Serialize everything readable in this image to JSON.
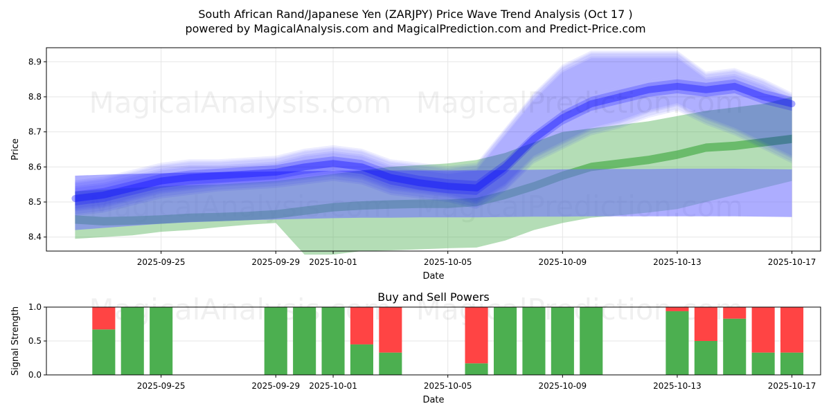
{
  "title_line1": "South African Rand/Japanese Yen (ZARJPY) Price Wave Trend Analysis (Oct 17 )",
  "title_line2": "powered by MagicalAnalysis.com and MagicalPrediction.com and Predict-Price.com",
  "watermarks": [
    "MagicalAnalysis.com",
    "MagicalPrediction.com"
  ],
  "colors": {
    "buy": "#4caf50",
    "sell": "#ff4444",
    "wave": "#0000ff",
    "trend": "#2e9e2e",
    "band": "#6a6aff"
  },
  "chart_data": [
    {
      "type": "area",
      "title": "",
      "xlabel": "Date",
      "ylabel": "Price",
      "xlim": [
        "2025-09-21",
        "2025-10-18"
      ],
      "ylim": [
        8.36,
        8.94
      ],
      "yticks": [
        8.4,
        8.5,
        8.6,
        8.7,
        8.8,
        8.9
      ],
      "xticks": [
        "2025-09-25",
        "2025-09-29",
        "2025-10-01",
        "2025-10-05",
        "2025-10-09",
        "2025-10-13",
        "2025-10-17"
      ],
      "x": [
        "2025-09-22",
        "2025-09-23",
        "2025-09-24",
        "2025-09-25",
        "2025-09-26",
        "2025-09-27",
        "2025-09-28",
        "2025-09-29",
        "2025-09-30",
        "2025-10-01",
        "2025-10-02",
        "2025-10-03",
        "2025-10-04",
        "2025-10-05",
        "2025-10-06",
        "2025-10-07",
        "2025-10-08",
        "2025-10-09",
        "2025-10-10",
        "2025-10-11",
        "2025-10-12",
        "2025-10-13",
        "2025-10-14",
        "2025-10-15",
        "2025-10-16",
        "2025-10-17"
      ],
      "series": [
        {
          "name": "price-wave",
          "values": [
            8.51,
            8.52,
            8.54,
            8.56,
            8.57,
            8.575,
            8.58,
            8.585,
            8.6,
            8.61,
            8.6,
            8.57,
            8.555,
            8.545,
            8.54,
            8.6,
            8.68,
            8.74,
            8.78,
            8.8,
            8.82,
            8.83,
            8.82,
            8.83,
            8.8,
            8.78
          ]
        },
        {
          "name": "wave-upper",
          "values": [
            8.55,
            8.56,
            8.58,
            8.6,
            8.61,
            8.61,
            8.615,
            8.62,
            8.64,
            8.65,
            8.64,
            8.61,
            8.6,
            8.59,
            8.6,
            8.7,
            8.8,
            8.88,
            8.92,
            8.92,
            8.92,
            8.92,
            8.86,
            8.87,
            8.84,
            8.8
          ]
        },
        {
          "name": "wave-lower",
          "values": [
            8.47,
            8.48,
            8.5,
            8.52,
            8.53,
            8.54,
            8.545,
            8.55,
            8.56,
            8.57,
            8.56,
            8.53,
            8.52,
            8.51,
            8.49,
            8.54,
            8.62,
            8.66,
            8.7,
            8.72,
            8.75,
            8.77,
            8.73,
            8.7,
            8.66,
            8.62
          ]
        },
        {
          "name": "green-trend",
          "values": [
            8.45,
            8.445,
            8.447,
            8.45,
            8.455,
            8.457,
            8.46,
            8.465,
            8.475,
            8.485,
            8.49,
            8.493,
            8.495,
            8.495,
            8.5,
            8.52,
            8.545,
            8.575,
            8.6,
            8.61,
            8.62,
            8.635,
            8.655,
            8.66,
            8.67,
            8.68
          ]
        },
        {
          "name": "green-band-upper",
          "values": [
            8.53,
            8.535,
            8.54,
            8.545,
            8.548,
            8.55,
            8.555,
            8.56,
            8.57,
            8.58,
            8.59,
            8.6,
            8.605,
            8.61,
            8.62,
            8.64,
            8.67,
            8.7,
            8.71,
            8.72,
            8.73,
            8.745,
            8.76,
            8.77,
            8.78,
            8.8
          ]
        },
        {
          "name": "green-band-lower",
          "values": [
            8.395,
            8.4,
            8.405,
            8.415,
            8.42,
            8.428,
            8.435,
            8.44,
            8.35,
            8.35,
            8.36,
            8.362,
            8.365,
            8.368,
            8.37,
            8.39,
            8.42,
            8.44,
            8.455,
            8.462,
            8.47,
            8.48,
            8.5,
            8.52,
            8.54,
            8.56
          ]
        },
        {
          "name": "blue-band-upper",
          "values": [
            8.575,
            8.578,
            8.58,
            8.582,
            8.584,
            8.585,
            8.586,
            8.587,
            8.588,
            8.589,
            8.59,
            8.59,
            8.59,
            8.59,
            8.59,
            8.591,
            8.592,
            8.593,
            8.594,
            8.594,
            8.594,
            8.595,
            8.595,
            8.595,
            8.594,
            8.593
          ]
        },
        {
          "name": "blue-band-lower",
          "values": [
            8.42,
            8.426,
            8.432,
            8.438,
            8.442,
            8.445,
            8.448,
            8.45,
            8.452,
            8.454,
            8.455,
            8.455,
            8.456,
            8.456,
            8.456,
            8.457,
            8.458,
            8.458,
            8.459,
            8.459,
            8.459,
            8.459,
            8.459,
            8.459,
            8.458,
            8.457
          ]
        }
      ]
    },
    {
      "type": "bar",
      "title": "Buy and Sell Powers",
      "xlabel": "Date",
      "ylabel": "Signal Strength",
      "xlim": [
        "2025-09-21",
        "2025-10-18"
      ],
      "ylim": [
        0,
        1
      ],
      "yticks": [
        "0.0",
        "0.5",
        "1.0"
      ],
      "xticks": [
        "2025-09-25",
        "2025-09-29",
        "2025-10-01",
        "2025-10-05",
        "2025-10-09",
        "2025-10-13",
        "2025-10-17"
      ],
      "categories": [
        "2025-09-23",
        "2025-09-24",
        "2025-09-25",
        "2025-09-29",
        "2025-09-30",
        "2025-10-01",
        "2025-10-02",
        "2025-10-03",
        "2025-10-06",
        "2025-10-07",
        "2025-10-08",
        "2025-10-09",
        "2025-10-10",
        "2025-10-13",
        "2025-10-14",
        "2025-10-15",
        "2025-10-16",
        "2025-10-17"
      ],
      "series": [
        {
          "name": "Buy",
          "values": [
            0.67,
            1.0,
            1.0,
            1.0,
            1.0,
            1.0,
            0.45,
            0.33,
            0.17,
            1.0,
            1.0,
            1.0,
            1.0,
            0.94,
            0.5,
            0.83,
            0.33,
            0.33
          ]
        },
        {
          "name": "Sell",
          "values": [
            0.33,
            0.0,
            0.0,
            0.0,
            0.0,
            0.0,
            0.55,
            0.67,
            0.83,
            0.0,
            0.0,
            0.0,
            0.0,
            0.06,
            0.5,
            0.17,
            0.67,
            0.67
          ]
        }
      ]
    }
  ]
}
